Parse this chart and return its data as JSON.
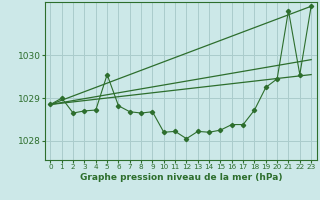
{
  "title": "",
  "xlabel": "Graphe pression niveau de la mer (hPa)",
  "ylabel": "",
  "bg_color": "#cce8e8",
  "grid_color": "#aacccc",
  "line_color": "#2d6e2d",
  "xlim": [
    -0.5,
    23.5
  ],
  "ylim": [
    1027.55,
    1031.25
  ],
  "yticks": [
    1028,
    1029,
    1030
  ],
  "xticks": [
    0,
    1,
    2,
    3,
    4,
    5,
    6,
    7,
    8,
    9,
    10,
    11,
    12,
    13,
    14,
    15,
    16,
    17,
    18,
    19,
    20,
    21,
    22,
    23
  ],
  "main_x": [
    0,
    1,
    2,
    3,
    4,
    5,
    6,
    7,
    8,
    9,
    10,
    11,
    12,
    13,
    14,
    15,
    16,
    17,
    18,
    19,
    20,
    21,
    22,
    23
  ],
  "main_y": [
    1028.85,
    1029.0,
    1028.65,
    1028.7,
    1028.72,
    1029.55,
    1028.82,
    1028.68,
    1028.65,
    1028.68,
    1028.2,
    1028.22,
    1028.05,
    1028.22,
    1028.2,
    1028.25,
    1028.38,
    1028.38,
    1028.72,
    1029.25,
    1029.45,
    1031.05,
    1029.55,
    1031.15
  ],
  "trend1_x": [
    0,
    23
  ],
  "trend1_y": [
    1028.85,
    1031.15
  ],
  "trend2_x": [
    0,
    23
  ],
  "trend2_y": [
    1028.85,
    1029.9
  ],
  "trend3_x": [
    0,
    23
  ],
  "trend3_y": [
    1028.85,
    1029.55
  ]
}
